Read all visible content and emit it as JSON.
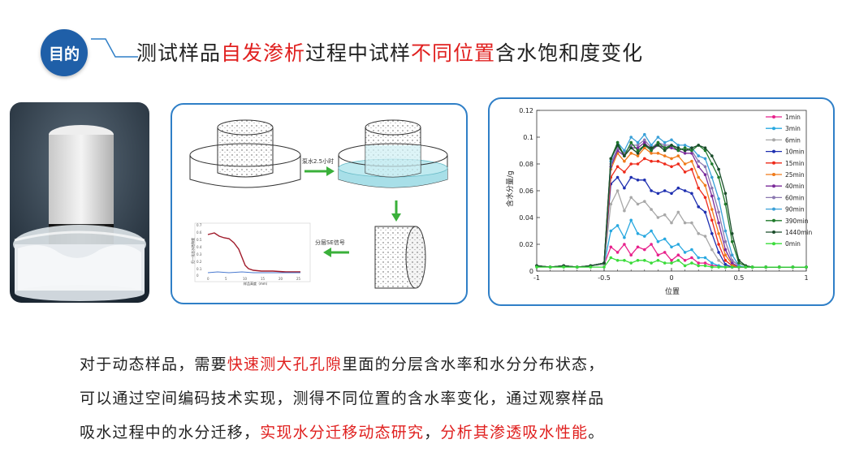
{
  "header": {
    "badge": "目的",
    "title_parts": [
      {
        "text": "测试样品",
        "accent": false
      },
      {
        "text": "自发渗析",
        "accent": true
      },
      {
        "text": "过程中试样",
        "accent": false
      },
      {
        "text": "不同位置",
        "accent": true
      },
      {
        "text": "含水饱和度变化",
        "accent": false
      }
    ]
  },
  "colors": {
    "accent": "#e0201f",
    "primary": "#1f5fa8",
    "panel_border": "#2f7fc7"
  },
  "diagram": {
    "step1_label": "泵水2.5小时",
    "step2_label": "分层SE信号",
    "mini_chart": {
      "ylabel": "归一化含水饱和度",
      "xlabel": "样品高度（mm）",
      "y_ticks": [
        "0.7",
        "0.6",
        "0.5",
        "0.4",
        "0.3",
        "0.2",
        "0.1",
        "0"
      ],
      "x_ticks": [
        "0",
        "5",
        "10",
        "15",
        "20",
        "25"
      ]
    }
  },
  "chart_data": {
    "type": "line",
    "title": "",
    "xlabel": "位置",
    "ylabel": "含水分量/g",
    "xlim": [
      -1,
      1
    ],
    "ylim": [
      0,
      0.12
    ],
    "x_ticks": [
      "-1",
      "-0.5",
      "0",
      "0.5",
      "1"
    ],
    "y_ticks": [
      "0",
      "0.02",
      "0.04",
      "0.06",
      "0.08",
      "0.1",
      "0.12"
    ],
    "legend_position": "right",
    "x": [
      -1.0,
      -0.9,
      -0.8,
      -0.7,
      -0.6,
      -0.5,
      -0.45,
      -0.4,
      -0.35,
      -0.3,
      -0.25,
      -0.2,
      -0.15,
      -0.1,
      -0.05,
      0.0,
      0.05,
      0.1,
      0.15,
      0.2,
      0.25,
      0.3,
      0.35,
      0.4,
      0.45,
      0.5,
      0.55,
      0.6,
      0.7,
      0.8,
      0.9,
      1.0
    ],
    "series": [
      {
        "name": "1min",
        "color": "#e8218c",
        "values": [
          0.004,
          0.003,
          0.004,
          0.003,
          0.004,
          0.005,
          0.018,
          0.014,
          0.02,
          0.012,
          0.018,
          0.016,
          0.02,
          0.012,
          0.014,
          0.008,
          0.012,
          0.008,
          0.01,
          0.006,
          0.006,
          0.004,
          0.004,
          0.003,
          0.003,
          0.003,
          0.003,
          0.003,
          0.003,
          0.003,
          0.003,
          0.003
        ]
      },
      {
        "name": "3min",
        "color": "#28a8e0",
        "values": [
          0.004,
          0.003,
          0.004,
          0.003,
          0.004,
          0.005,
          0.03,
          0.034,
          0.025,
          0.038,
          0.028,
          0.026,
          0.03,
          0.022,
          0.024,
          0.018,
          0.02,
          0.014,
          0.016,
          0.01,
          0.01,
          0.006,
          0.004,
          0.003,
          0.003,
          0.003,
          0.003,
          0.003,
          0.003,
          0.003,
          0.003,
          0.003
        ]
      },
      {
        "name": "6min",
        "color": "#a8a8a8",
        "values": [
          0.004,
          0.003,
          0.004,
          0.003,
          0.004,
          0.005,
          0.05,
          0.06,
          0.045,
          0.055,
          0.05,
          0.052,
          0.046,
          0.04,
          0.042,
          0.036,
          0.044,
          0.036,
          0.036,
          0.028,
          0.026,
          0.016,
          0.008,
          0.004,
          0.003,
          0.003,
          0.003,
          0.003,
          0.003,
          0.003,
          0.003,
          0.003
        ]
      },
      {
        "name": "10min",
        "color": "#1e2fb0",
        "values": [
          0.004,
          0.003,
          0.004,
          0.003,
          0.004,
          0.006,
          0.065,
          0.07,
          0.062,
          0.07,
          0.068,
          0.068,
          0.06,
          0.058,
          0.06,
          0.058,
          0.062,
          0.06,
          0.058,
          0.048,
          0.044,
          0.028,
          0.014,
          0.005,
          0.003,
          0.003,
          0.003,
          0.003,
          0.003,
          0.003,
          0.003,
          0.003
        ]
      },
      {
        "name": "15min",
        "color": "#ee2a1a",
        "values": [
          0.004,
          0.003,
          0.004,
          0.003,
          0.004,
          0.006,
          0.07,
          0.078,
          0.074,
          0.08,
          0.08,
          0.084,
          0.082,
          0.082,
          0.08,
          0.078,
          0.08,
          0.074,
          0.076,
          0.062,
          0.055,
          0.038,
          0.02,
          0.008,
          0.004,
          0.003,
          0.003,
          0.003,
          0.003,
          0.003,
          0.003,
          0.003
        ]
      },
      {
        "name": "25min",
        "color": "#f07a1a",
        "values": [
          0.004,
          0.003,
          0.004,
          0.003,
          0.004,
          0.006,
          0.076,
          0.088,
          0.082,
          0.088,
          0.086,
          0.092,
          0.088,
          0.088,
          0.086,
          0.084,
          0.086,
          0.08,
          0.082,
          0.07,
          0.064,
          0.046,
          0.028,
          0.012,
          0.005,
          0.003,
          0.003,
          0.003,
          0.003,
          0.003,
          0.003,
          0.003
        ]
      },
      {
        "name": "40min",
        "color": "#7a2a9a",
        "values": [
          0.004,
          0.003,
          0.004,
          0.003,
          0.004,
          0.006,
          0.078,
          0.09,
          0.086,
          0.092,
          0.092,
          0.096,
          0.09,
          0.094,
          0.092,
          0.092,
          0.09,
          0.088,
          0.088,
          0.078,
          0.072,
          0.056,
          0.036,
          0.016,
          0.006,
          0.003,
          0.003,
          0.003,
          0.003,
          0.003,
          0.003,
          0.003
        ]
      },
      {
        "name": "60min",
        "color": "#8a78b0",
        "values": [
          0.004,
          0.003,
          0.004,
          0.003,
          0.004,
          0.006,
          0.08,
          0.092,
          0.088,
          0.094,
          0.094,
          0.098,
          0.092,
          0.096,
          0.094,
          0.094,
          0.092,
          0.09,
          0.09,
          0.082,
          0.078,
          0.062,
          0.044,
          0.022,
          0.008,
          0.004,
          0.003,
          0.003,
          0.003,
          0.003,
          0.003,
          0.003
        ]
      },
      {
        "name": "90min",
        "color": "#3aa0d8",
        "values": [
          0.004,
          0.003,
          0.004,
          0.003,
          0.004,
          0.006,
          0.082,
          0.096,
          0.09,
          0.1,
          0.096,
          0.102,
          0.094,
          0.1,
          0.096,
          0.098,
          0.094,
          0.094,
          0.092,
          0.086,
          0.084,
          0.07,
          0.054,
          0.03,
          0.012,
          0.004,
          0.003,
          0.003,
          0.003,
          0.003,
          0.003,
          0.003
        ]
      },
      {
        "name": "390min",
        "color": "#1f7a2a",
        "values": [
          0.004,
          0.003,
          0.004,
          0.003,
          0.004,
          0.006,
          0.084,
          0.096,
          0.086,
          0.096,
          0.09,
          0.094,
          0.09,
          0.096,
          0.092,
          0.094,
          0.09,
          0.092,
          0.09,
          0.094,
          0.09,
          0.08,
          0.07,
          0.05,
          0.022,
          0.006,
          0.004,
          0.003,
          0.003,
          0.003,
          0.003,
          0.003
        ]
      },
      {
        "name": "1440min",
        "color": "#1a4d2a",
        "values": [
          0.004,
          0.003,
          0.004,
          0.003,
          0.004,
          0.006,
          0.084,
          0.094,
          0.086,
          0.092,
          0.088,
          0.094,
          0.092,
          0.094,
          0.09,
          0.094,
          0.092,
          0.09,
          0.092,
          0.094,
          0.092,
          0.086,
          0.076,
          0.058,
          0.028,
          0.008,
          0.004,
          0.003,
          0.003,
          0.003,
          0.003,
          0.003
        ]
      },
      {
        "name": "0min",
        "color": "#3adc3a",
        "values": [
          0.003,
          0.003,
          0.003,
          0.003,
          0.003,
          0.003,
          0.01,
          0.008,
          0.008,
          0.006,
          0.008,
          0.008,
          0.006,
          0.008,
          0.006,
          0.006,
          0.008,
          0.004,
          0.006,
          0.004,
          0.004,
          0.003,
          0.003,
          0.003,
          0.003,
          0.003,
          0.003,
          0.003,
          0.003,
          0.003,
          0.003,
          0.003
        ]
      }
    ]
  },
  "paragraph": {
    "lines": [
      [
        {
          "text": "对于动态样品，需要",
          "accent": false
        },
        {
          "text": "快速测大孔孔隙",
          "accent": true
        },
        {
          "text": "里面的分层含水率和水分分布状态，",
          "accent": false
        }
      ],
      [
        {
          "text": "可以通过空间编码技术实现，测得不同位置的含水率变化，通过观察样品",
          "accent": false
        }
      ],
      [
        {
          "text": "吸水过程中的水分迁移，",
          "accent": false
        },
        {
          "text": "实现水分迁移动态研究",
          "accent": true
        },
        {
          "text": "，",
          "accent": false
        },
        {
          "text": "分析其渗透吸水性能",
          "accent": true
        },
        {
          "text": "。",
          "accent": false
        }
      ]
    ]
  }
}
